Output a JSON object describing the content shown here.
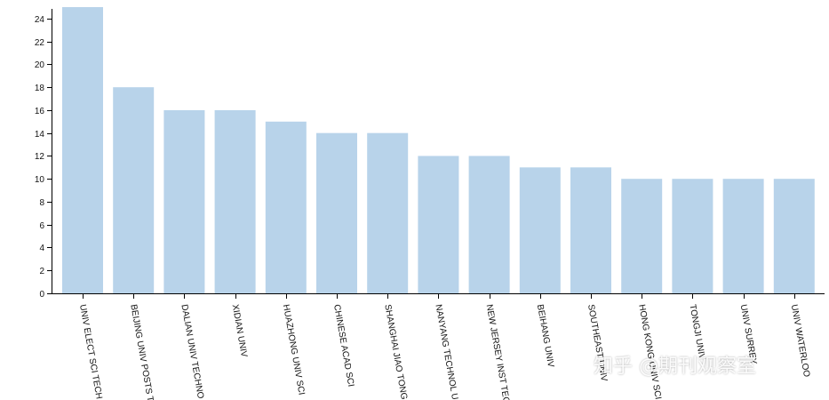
{
  "chart_data": {
    "type": "bar",
    "categories": [
      "UNIV ELECT SCI TECH",
      "BEIJING UNIV POSTS T",
      "DALIAN UNIV TECHNO",
      "XIDIAN UNIV",
      "HUAZHONG UNIV SCI",
      "CHINESE ACAD SCI",
      "SHANGHAI JIAO TONG",
      "NANYANG TECHNOL U",
      "NEW JERSEY INST TEC",
      "BEIHANG UNIV",
      "SOUTHEAST UNIV",
      "HONG KONG UNIV SCI",
      "TONGJI UNIV",
      "UNIV SURREY",
      "UNIV WATERLOO"
    ],
    "values": [
      25,
      18,
      16,
      16,
      15,
      14,
      14,
      12,
      12,
      11,
      11,
      10,
      10,
      10,
      10
    ],
    "yticks": [
      0,
      2,
      4,
      6,
      8,
      10,
      12,
      14,
      16,
      18,
      20,
      22,
      24
    ],
    "ylim": [
      0,
      25
    ],
    "title": "",
    "xlabel": "",
    "ylabel": "",
    "grid": false,
    "bar_color": "#b8d3ea"
  },
  "watermark": "知乎 @期刊观察室"
}
